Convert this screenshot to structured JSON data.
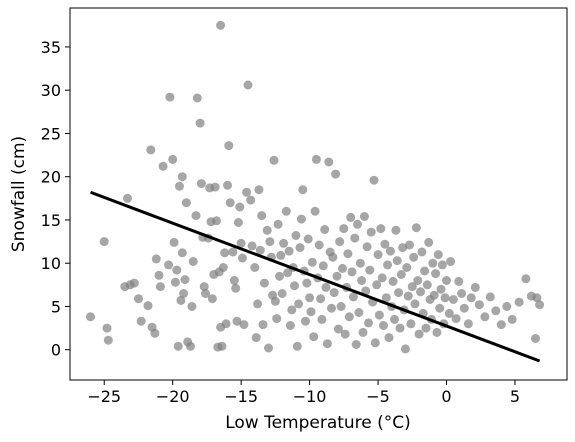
{
  "chart_data": {
    "type": "scatter",
    "title": "",
    "xlabel": "Low Temperature (°C)",
    "ylabel": "Snowfall (cm)",
    "xlim": [
      -27.5,
      8.8
    ],
    "ylim": [
      -3.5,
      39.5
    ],
    "xticks": [
      -25,
      -20,
      -15,
      -10,
      -5,
      0,
      5
    ],
    "xtick_labels": [
      "−25",
      "−20",
      "−15",
      "−10",
      "−5",
      "0",
      "5"
    ],
    "yticks": [
      0,
      5,
      10,
      15,
      20,
      25,
      30,
      35
    ],
    "ytick_labels": [
      "0",
      "5",
      "10",
      "15",
      "20",
      "25",
      "30",
      "35"
    ],
    "grid": false,
    "legend": "none",
    "colors": {
      "points": "#808080",
      "trend_line": "#000000",
      "axes": "#000000"
    },
    "trend_line": {
      "x": [
        -26,
        6.8
      ],
      "y": [
        18.2,
        -1.3
      ]
    },
    "points": [
      [
        -26,
        3.8
      ],
      [
        -25.0,
        12.5
      ],
      [
        -24.8,
        2.5
      ],
      [
        -24.7,
        1.1
      ],
      [
        -23.5,
        7.3
      ],
      [
        -23.3,
        17.5
      ],
      [
        -23.1,
        7.5
      ],
      [
        -22.8,
        7.7
      ],
      [
        -22.5,
        5.9
      ],
      [
        -22.3,
        3.3
      ],
      [
        -21.8,
        5.1
      ],
      [
        -21.6,
        23.1
      ],
      [
        -21.5,
        2.6
      ],
      [
        -21.3,
        1.9
      ],
      [
        -21.2,
        10.5
      ],
      [
        -21.0,
        8.6
      ],
      [
        -20.9,
        7.3
      ],
      [
        -20.7,
        21.2
      ],
      [
        -20.3,
        9.8
      ],
      [
        -20.2,
        29.2
      ],
      [
        -20.0,
        22.0
      ],
      [
        -19.9,
        12.4
      ],
      [
        -19.8,
        7.8
      ],
      [
        -19.7,
        9.2
      ],
      [
        -19.6,
        0.4
      ],
      [
        -19.5,
        18.9
      ],
      [
        -19.4,
        5.7
      ],
      [
        -19.3,
        11.2
      ],
      [
        -19.3,
        20.0
      ],
      [
        -19.2,
        6.5
      ],
      [
        -19.1,
        8.1
      ],
      [
        -19.0,
        17.0
      ],
      [
        -18.9,
        0.9
      ],
      [
        -18.7,
        0.4
      ],
      [
        -18.6,
        5.0
      ],
      [
        -18.5,
        10.2
      ],
      [
        -18.3,
        15.5
      ],
      [
        -18.2,
        29.1
      ],
      [
        -18.0,
        26.2
      ],
      [
        -17.9,
        19.2
      ],
      [
        -17.8,
        13.0
      ],
      [
        -17.7,
        7.3
      ],
      [
        -17.6,
        6.5
      ],
      [
        -17.4,
        12.9
      ],
      [
        -17.3,
        18.7
      ],
      [
        -17.2,
        14.8
      ],
      [
        -17.1,
        5.9
      ],
      [
        -17.0,
        8.7
      ],
      [
        -16.9,
        18.8
      ],
      [
        -16.8,
        14.9
      ],
      [
        -16.7,
        0.3
      ],
      [
        -16.6,
        9.0
      ],
      [
        -16.5,
        2.6
      ],
      [
        -16.5,
        37.5
      ],
      [
        -16.4,
        0.4
      ],
      [
        -16.3,
        9.5
      ],
      [
        -16.2,
        11.2
      ],
      [
        -16.1,
        3.0
      ],
      [
        -16.0,
        19.0
      ],
      [
        -15.9,
        23.6
      ],
      [
        -15.8,
        17.0
      ],
      [
        -15.6,
        11.3
      ],
      [
        -15.5,
        8.0
      ],
      [
        -15.4,
        7.1
      ],
      [
        -15.3,
        3.3
      ],
      [
        -15.2,
        14.7
      ],
      [
        -15.1,
        16.5
      ],
      [
        -15.0,
        12.3
      ],
      [
        -14.9,
        10.6
      ],
      [
        -14.8,
        2.9
      ],
      [
        -14.6,
        18.2
      ],
      [
        -14.5,
        30.6
      ],
      [
        -14.3,
        17.3
      ],
      [
        -14.2,
        12.0
      ],
      [
        -14.0,
        9.5
      ],
      [
        -13.9,
        1.4
      ],
      [
        -13.8,
        5.3
      ],
      [
        -13.7,
        18.5
      ],
      [
        -13.6,
        11.5
      ],
      [
        -13.5,
        15.5
      ],
      [
        -13.4,
        2.9
      ],
      [
        -13.3,
        7.7
      ],
      [
        -13.1,
        13.8
      ],
      [
        -13.0,
        0.2
      ],
      [
        -12.9,
        12.5
      ],
      [
        -12.8,
        10.7
      ],
      [
        -12.7,
        6.3
      ],
      [
        -12.6,
        21.9
      ],
      [
        -12.5,
        5.6
      ],
      [
        -12.4,
        3.6
      ],
      [
        -12.3,
        14.5
      ],
      [
        -12.2,
        8.5
      ],
      [
        -12.1,
        10.9
      ],
      [
        -12.0,
        6.5
      ],
      [
        -11.9,
        12.3
      ],
      [
        -11.7,
        16.0
      ],
      [
        -11.6,
        8.9
      ],
      [
        -11.5,
        11.4
      ],
      [
        -11.4,
        2.8
      ],
      [
        -11.3,
        4.6
      ],
      [
        -11.2,
        9.5
      ],
      [
        -11.1,
        7.4
      ],
      [
        -11.0,
        13.2
      ],
      [
        -10.9,
        0.4
      ],
      [
        -10.8,
        5.3
      ],
      [
        -10.7,
        11.8
      ],
      [
        -10.6,
        15.1
      ],
      [
        -10.5,
        18.5
      ],
      [
        -10.4,
        9.1
      ],
      [
        -10.3,
        3.3
      ],
      [
        -10.2,
        7.7
      ],
      [
        -10.1,
        12.8
      ],
      [
        -10.0,
        6.0
      ],
      [
        -9.9,
        4.4
      ],
      [
        -9.8,
        10.1
      ],
      [
        -9.7,
        1.5
      ],
      [
        -9.6,
        16.0
      ],
      [
        -9.5,
        22.0
      ],
      [
        -9.4,
        8.3
      ],
      [
        -9.3,
        12.1
      ],
      [
        -9.2,
        5.9
      ],
      [
        -9.1,
        3.5
      ],
      [
        -9.0,
        9.7
      ],
      [
        -8.9,
        13.9
      ],
      [
        -8.8,
        7.2
      ],
      [
        -8.7,
        0.7
      ],
      [
        -8.6,
        21.7
      ],
      [
        -8.5,
        11.3
      ],
      [
        -8.4,
        4.8
      ],
      [
        -8.3,
        10.7
      ],
      [
        -8.2,
        6.6
      ],
      [
        -8.1,
        20.3
      ],
      [
        -8.0,
        8.5
      ],
      [
        -7.9,
        2.4
      ],
      [
        -7.8,
        12.5
      ],
      [
        -7.7,
        5.0
      ],
      [
        -7.6,
        9.4
      ],
      [
        -7.5,
        14.0
      ],
      [
        -7.4,
        1.8
      ],
      [
        -7.3,
        7.2
      ],
      [
        -7.2,
        11.1
      ],
      [
        -7.1,
        3.8
      ],
      [
        -7.0,
        15.3
      ],
      [
        -6.9,
        9.0
      ],
      [
        -6.8,
        6.1
      ],
      [
        -6.7,
        12.9
      ],
      [
        -6.6,
        0.6
      ],
      [
        -6.5,
        14.5
      ],
      [
        -6.4,
        4.3
      ],
      [
        -6.3,
        10.0
      ],
      [
        -6.2,
        8.0
      ],
      [
        -6.1,
        2.0
      ],
      [
        -6.0,
        15.4
      ],
      [
        -5.9,
        6.8
      ],
      [
        -5.8,
        11.9
      ],
      [
        -5.7,
        3.1
      ],
      [
        -5.6,
        9.2
      ],
      [
        -5.5,
        13.6
      ],
      [
        -5.4,
        5.5
      ],
      [
        -5.3,
        19.6
      ],
      [
        -5.2,
        0.8
      ],
      [
        -5.1,
        7.5
      ],
      [
        -5.0,
        11.0
      ],
      [
        -4.9,
        4.0
      ],
      [
        -4.8,
        14.0
      ],
      [
        -4.7,
        8.3
      ],
      [
        -4.6,
        2.8
      ],
      [
        -4.5,
        12.2
      ],
      [
        -4.4,
        6.0
      ],
      [
        -4.3,
        9.8
      ],
      [
        -4.2,
        1.4
      ],
      [
        -4.1,
        11.4
      ],
      [
        -4.0,
        5.0
      ],
      [
        -3.9,
        7.9
      ],
      [
        -3.8,
        3.5
      ],
      [
        -3.7,
        13.8
      ],
      [
        -3.6,
        10.3
      ],
      [
        -3.5,
        6.6
      ],
      [
        -3.4,
        2.5
      ],
      [
        -3.3,
        8.7
      ],
      [
        -3.2,
        11.8
      ],
      [
        -3.1,
        4.6
      ],
      [
        -3.0,
        0.1
      ],
      [
        -2.9,
        9.5
      ],
      [
        -2.8,
        6.2
      ],
      [
        -2.7,
        12.1
      ],
      [
        -2.6,
        3.0
      ],
      [
        -2.5,
        7.3
      ],
      [
        -2.4,
        10.7
      ],
      [
        -2.3,
        5.3
      ],
      [
        -2.2,
        14.1
      ],
      [
        -2.1,
        8.0
      ],
      [
        -2.0,
        1.8
      ],
      [
        -1.9,
        6.7
      ],
      [
        -1.8,
        11.3
      ],
      [
        -1.7,
        4.2
      ],
      [
        -1.6,
        9.1
      ],
      [
        -1.5,
        2.5
      ],
      [
        -1.4,
        7.5
      ],
      [
        -1.3,
        12.4
      ],
      [
        -1.2,
        5.8
      ],
      [
        -1.1,
        3.5
      ],
      [
        -1.0,
        10.0
      ],
      [
        -0.9,
        6.3
      ],
      [
        -0.8,
        8.8
      ],
      [
        -0.7,
        2.0
      ],
      [
        -0.6,
        11.0
      ],
      [
        -0.5,
        4.8
      ],
      [
        -0.4,
        7.0
      ],
      [
        -0.3,
        9.8
      ],
      [
        -0.2,
        3.0
      ],
      [
        -0.1,
        6.0
      ],
      [
        0.0,
        8.0
      ],
      [
        0.2,
        4.2
      ],
      [
        0.3,
        10.2
      ],
      [
        0.5,
        5.8
      ],
      [
        0.7,
        3.6
      ],
      [
        0.9,
        7.9
      ],
      [
        1.1,
        6.5
      ],
      [
        1.3,
        4.8
      ],
      [
        1.6,
        3.0
      ],
      [
        1.8,
        6.0
      ],
      [
        2.1,
        7.2
      ],
      [
        2.4,
        5.2
      ],
      [
        2.8,
        3.8
      ],
      [
        3.2,
        6.1
      ],
      [
        3.6,
        4.5
      ],
      [
        4.0,
        2.9
      ],
      [
        4.4,
        5.0
      ],
      [
        4.8,
        3.5
      ],
      [
        5.3,
        5.5
      ],
      [
        5.8,
        8.2
      ],
      [
        6.2,
        6.2
      ],
      [
        6.5,
        1.3
      ],
      [
        6.8,
        5.2
      ],
      [
        6.6,
        6.0
      ]
    ]
  }
}
